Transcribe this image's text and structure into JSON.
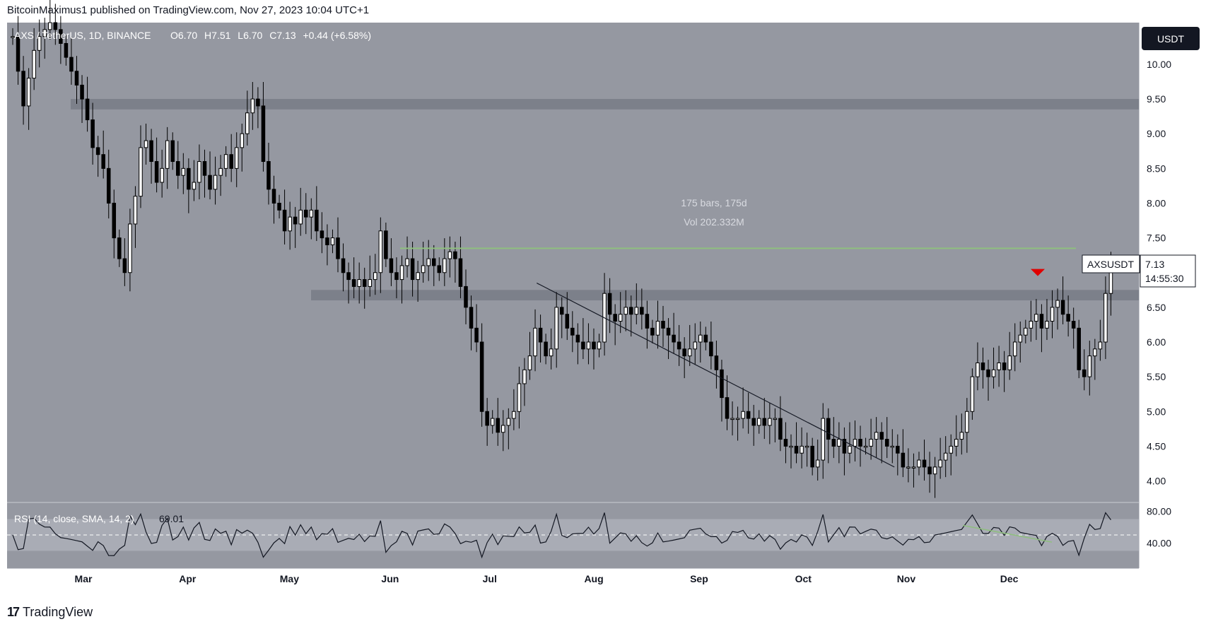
{
  "header": {
    "publisher": "BitcoinMaximus1 published on TradingView.com, Nov 27, 2023 10:04 UTC+1"
  },
  "legend": {
    "symbol": "AXS / TetherUS, 1D, BINANCE",
    "open_label": "O",
    "open": "6.70",
    "high_label": "H",
    "high": "7.51",
    "low_label": "L",
    "low": "6.70",
    "close_label": "C",
    "close": "7.13",
    "change": "+0.44 (+6.58%)"
  },
  "currency_button": "USDT",
  "price_tag": {
    "symbol": "AXSUSDT",
    "price": "7.13",
    "countdown": "14:55:30"
  },
  "measure": {
    "bars": "175 bars, 175d",
    "vol": "Vol 202.332M"
  },
  "rsi": {
    "label": "RSI (14, close, SMA, 14, 2)",
    "value": "69.01"
  },
  "footer": {
    "brand": "TradingView"
  },
  "colors": {
    "background": "#9598a1",
    "candle": "#000000",
    "zone": "#787b86",
    "green_line": "#8fbf7f",
    "marker": "#e00000"
  },
  "chart_data": {
    "type": "candlestick",
    "symbol": "AXSUSDT",
    "timeframe": "1D",
    "ylim": [
      3.7,
      10.6
    ],
    "price_ticks": [
      "10.00",
      "9.50",
      "9.00",
      "8.50",
      "8.00",
      "7.50",
      "7.00",
      "6.50",
      "6.00",
      "5.50",
      "5.00",
      "4.50",
      "4.00"
    ],
    "x_ticks": [
      "Mar",
      "Apr",
      "May",
      "Jun",
      "Jul",
      "Aug",
      "Sep",
      "Oct",
      "Nov",
      "Dec"
    ],
    "horizontal_zones": [
      {
        "from": 9.35,
        "to": 9.5
      },
      {
        "from": 6.6,
        "to": 6.75
      }
    ],
    "horizontal_lines": [
      {
        "price": 7.35
      }
    ],
    "trendline": [
      [
        0.468,
        6.85
      ],
      [
        0.784,
        4.2
      ]
    ],
    "marker_price": 6.95,
    "closes": [
      10.4,
      9.9,
      9.4,
      9.8,
      10.2,
      10.4,
      10.5,
      10.6,
      10.5,
      10.3,
      10.1,
      9.9,
      9.7,
      9.5,
      9.2,
      8.8,
      8.7,
      8.5,
      8.0,
      7.5,
      7.2,
      7.0,
      7.7,
      8.1,
      8.8,
      8.9,
      8.6,
      8.3,
      8.5,
      8.9,
      8.6,
      8.4,
      8.5,
      8.2,
      8.3,
      8.6,
      8.4,
      8.2,
      8.4,
      8.5,
      8.7,
      8.5,
      8.8,
      9.0,
      9.3,
      9.5,
      9.4,
      8.6,
      8.2,
      8.0,
      7.9,
      7.6,
      7.8,
      7.7,
      7.9,
      7.8,
      7.9,
      7.6,
      7.5,
      7.4,
      7.5,
      7.2,
      7.0,
      6.9,
      6.8,
      6.9,
      6.8,
      6.9,
      7.0,
      7.6,
      7.2,
      7.0,
      6.9,
      7.1,
      7.2,
      6.9,
      7.0,
      7.1,
      7.2,
      7.1,
      7.0,
      7.2,
      7.3,
      7.2,
      6.8,
      6.5,
      6.2,
      6.0,
      5.0,
      4.8,
      4.9,
      4.7,
      4.8,
      4.9,
      5.0,
      5.4,
      5.6,
      5.8,
      6.2,
      6.0,
      5.8,
      5.9,
      6.5,
      6.4,
      6.2,
      6.1,
      6.0,
      5.9,
      6.0,
      5.9,
      6.0,
      6.7,
      6.4,
      6.3,
      6.4,
      6.5,
      6.4,
      6.5,
      6.4,
      6.2,
      6.1,
      6.3,
      6.2,
      6.1,
      6.0,
      5.9,
      5.8,
      5.9,
      6.0,
      6.1,
      6.0,
      5.8,
      5.6,
      5.2,
      4.9,
      4.9,
      4.9,
      5.0,
      4.9,
      4.8,
      4.9,
      4.8,
      4.9,
      4.9,
      4.6,
      4.5,
      4.5,
      4.4,
      4.5,
      4.5,
      4.2,
      4.3,
      4.9,
      4.6,
      4.5,
      4.6,
      4.4,
      4.5,
      4.6,
      4.5,
      4.5,
      4.6,
      4.7,
      4.6,
      4.5,
      4.5,
      4.4,
      4.2,
      4.2,
      4.2,
      4.3,
      4.2,
      4.1,
      4.2,
      4.3,
      4.4,
      4.5,
      4.6,
      4.7,
      5.0,
      5.5,
      5.7,
      5.6,
      5.5,
      5.6,
      5.7,
      5.6,
      5.8,
      6.0,
      6.1,
      6.2,
      6.3,
      6.4,
      6.2,
      6.3,
      6.5,
      6.6,
      6.4,
      6.3,
      6.2,
      5.6,
      5.5,
      5.8,
      5.9,
      6.0,
      6.7,
      7.13
    ],
    "rsi": {
      "upper": 70,
      "lower": 30,
      "mid": 50,
      "ticks": [
        "80.00",
        "40.00"
      ],
      "last": 69.01
    }
  }
}
